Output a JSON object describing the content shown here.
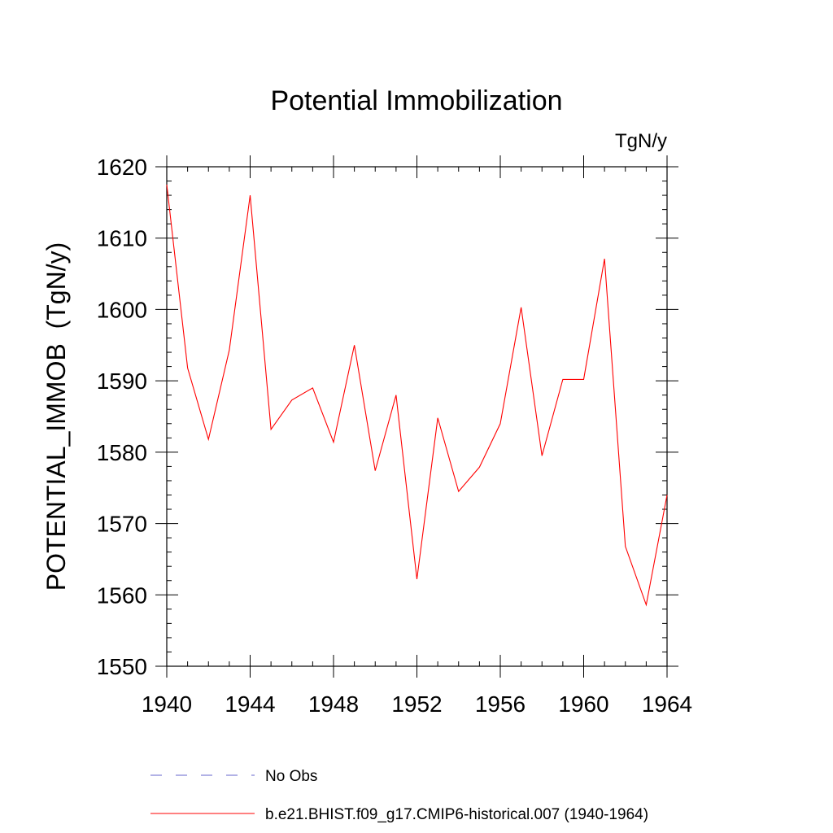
{
  "chart_data": {
    "type": "line",
    "title": "Potential Immobilization",
    "units_label": "TgN/y",
    "ylabel": "POTENTIAL_IMMOB  (TgN/y)",
    "xlabel": "",
    "xlim": [
      1940,
      1964
    ],
    "ylim": [
      1550,
      1620
    ],
    "x_ticks": [
      1940,
      1944,
      1948,
      1952,
      1956,
      1960,
      1964
    ],
    "x_tick_labels": [
      "1940",
      "1944",
      "1948",
      "1952",
      "1956",
      "1960",
      "1964"
    ],
    "y_ticks": [
      1550,
      1560,
      1570,
      1580,
      1590,
      1600,
      1610,
      1620
    ],
    "y_tick_labels": [
      "1550",
      "1560",
      "1570",
      "1580",
      "1590",
      "1600",
      "1610",
      "1620"
    ],
    "grid": false,
    "legend_position": "bottom",
    "x": [
      1940,
      1941,
      1942,
      1943,
      1944,
      1945,
      1946,
      1947,
      1948,
      1949,
      1950,
      1951,
      1952,
      1953,
      1954,
      1955,
      1956,
      1957,
      1958,
      1959,
      1960,
      1961,
      1962,
      1963,
      1964
    ],
    "series": [
      {
        "name": "b.e21.BHIST.f09_g17.CMIP6-historical.007 (1940-1964)",
        "color": "#ff0000",
        "style": "solid",
        "values": [
          1617.5,
          1591.8,
          1581.8,
          1594.3,
          1616.0,
          1583.2,
          1587.3,
          1589.0,
          1581.4,
          1595.0,
          1577.4,
          1588.0,
          1562.2,
          1584.8,
          1574.5,
          1577.9,
          1584.0,
          1600.3,
          1579.5,
          1590.2,
          1590.2,
          1607.1,
          1566.8,
          1558.6,
          1574.0
        ]
      }
    ],
    "legend": [
      {
        "label": "No Obs",
        "color": "#6666cc",
        "style": "dashed"
      },
      {
        "label": "b.e21.BHIST.f09_g17.CMIP6-historical.007 (1940-1964)",
        "color": "#ff0000",
        "style": "solid"
      }
    ]
  }
}
